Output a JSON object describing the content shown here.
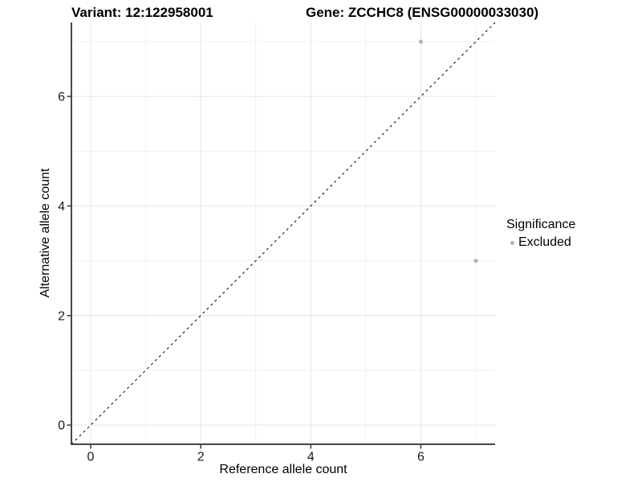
{
  "page": {
    "background": "#ffffff"
  },
  "header": {
    "title_left": "Variant: 12:122958001",
    "title_right": "Gene: ZCCHC8 (ENSG00000033030)"
  },
  "legend": {
    "title": "Significance",
    "items": [
      {
        "label": "Excluded",
        "color": "#b3b3b3"
      }
    ]
  },
  "chart_data": {
    "type": "scatter",
    "title": "Variant: 12:122958001  |  Gene: ZCCHC8 (ENSG00000033030)",
    "xlabel": "Reference allele count",
    "ylabel": "Alternative allele count",
    "xlim": [
      -0.35,
      7.35
    ],
    "ylim": [
      -0.35,
      7.35
    ],
    "x_ticks": [
      0,
      2,
      4,
      6
    ],
    "y_ticks": [
      0,
      2,
      4,
      6
    ],
    "x_minor_ticks": [
      1,
      3,
      5,
      7
    ],
    "y_minor_ticks": [
      1,
      3,
      5,
      7
    ],
    "grid": true,
    "legend_position": "right",
    "abline": {
      "slope": 1,
      "intercept": 0,
      "linetype": "dashed",
      "color": "#111111"
    },
    "series": [
      {
        "name": "Excluded",
        "color": "#b3b3b3",
        "points": [
          [
            6,
            7
          ],
          [
            7,
            3
          ]
        ]
      }
    ],
    "colors": {
      "grid_major": "#e3e3e3",
      "grid_minor": "#f0f0f0",
      "axis_line": "#464646",
      "tick_mark": "#333333",
      "tick_text": "#1a1a1a"
    }
  }
}
